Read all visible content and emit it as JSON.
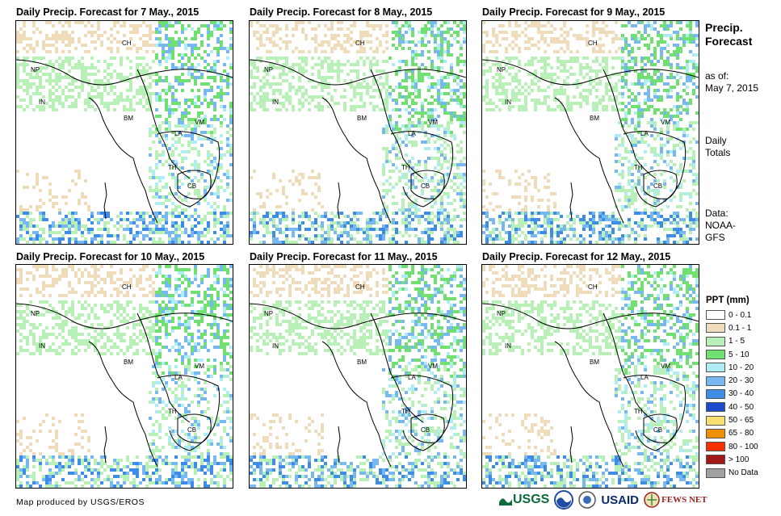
{
  "panels": [
    {
      "title": "Daily Precip. Forecast for 7 May., 2015"
    },
    {
      "title": "Daily Precip. Forecast for 8 May., 2015"
    },
    {
      "title": "Daily Precip. Forecast for 9 May., 2015"
    },
    {
      "title": "Daily Precip. Forecast for 10 May., 2015"
    },
    {
      "title": "Daily Precip. Forecast for 11 May., 2015"
    },
    {
      "title": "Daily Precip. Forecast for 12 May., 2015"
    }
  ],
  "country_labels": [
    "CH",
    "NP",
    "IN",
    "BM",
    "LA",
    "VM",
    "TH",
    "CB"
  ],
  "sidebar": {
    "title_line1": "Precip.",
    "title_line2": "Forecast",
    "asof_line1": "as of:",
    "asof_line2": "May 7, 2015",
    "totals_line1": "Daily",
    "totals_line2": "Totals",
    "data_line1": "Data:",
    "data_line2": "NOAA-",
    "data_line3": "GFS"
  },
  "legend": {
    "title": "PPT (mm)",
    "items": [
      {
        "label": "0 - 0.1",
        "color": "#ffffff"
      },
      {
        "label": "0.1 - 1",
        "color": "#eedcba"
      },
      {
        "label": "1 - 5",
        "color": "#b8f0b8"
      },
      {
        "label": "5 - 10",
        "color": "#70e070"
      },
      {
        "label": "10 - 20",
        "color": "#b0ecf4"
      },
      {
        "label": "20 - 30",
        "color": "#78b8f0"
      },
      {
        "label": "30 - 40",
        "color": "#3c8ce8"
      },
      {
        "label": "40 - 50",
        "color": "#1c4ccc"
      },
      {
        "label": "50 - 65",
        "color": "#f8e070"
      },
      {
        "label": "65 - 80",
        "color": "#f09000"
      },
      {
        "label": "80 - 100",
        "color": "#f83000"
      },
      {
        "label": "> 100",
        "color": "#a01818"
      },
      {
        "label": "No Data",
        "color": "#a0a0a0"
      }
    ]
  },
  "credit": "Map produced by USGS/EROS",
  "logos": {
    "usgs": "USGS",
    "usaid": "USAID",
    "fewsnet": "FEWS NET"
  }
}
